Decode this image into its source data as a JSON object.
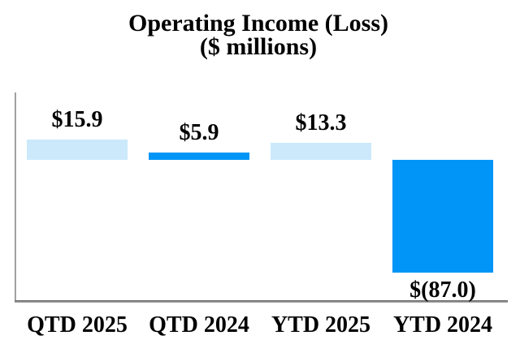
{
  "chart_data": {
    "type": "bar",
    "title": "Operating Income (Loss)",
    "subtitle": "($ millions)",
    "categories": [
      "QTD 2025",
      "QTD 2024",
      "YTD 2025",
      "YTD 2024"
    ],
    "values": [
      15.9,
      5.9,
      13.3,
      -87.0
    ],
    "value_labels": [
      "$15.9",
      "$5.9",
      "$13.3",
      "$(87.0)"
    ],
    "series": [
      {
        "name": "Operating Income (Loss)",
        "values": [
          15.9,
          5.9,
          13.3,
          -87.0
        ]
      }
    ],
    "bar_colors": [
      "#CBE9FB",
      "#0095F6",
      "#CBE9FB",
      "#0095F6"
    ],
    "xlabel": "",
    "ylabel": "",
    "ylim": [
      -110,
      50
    ],
    "grid": false,
    "legend": null,
    "axis_line_color": "#8c8c8c",
    "text_color": "#000000"
  }
}
